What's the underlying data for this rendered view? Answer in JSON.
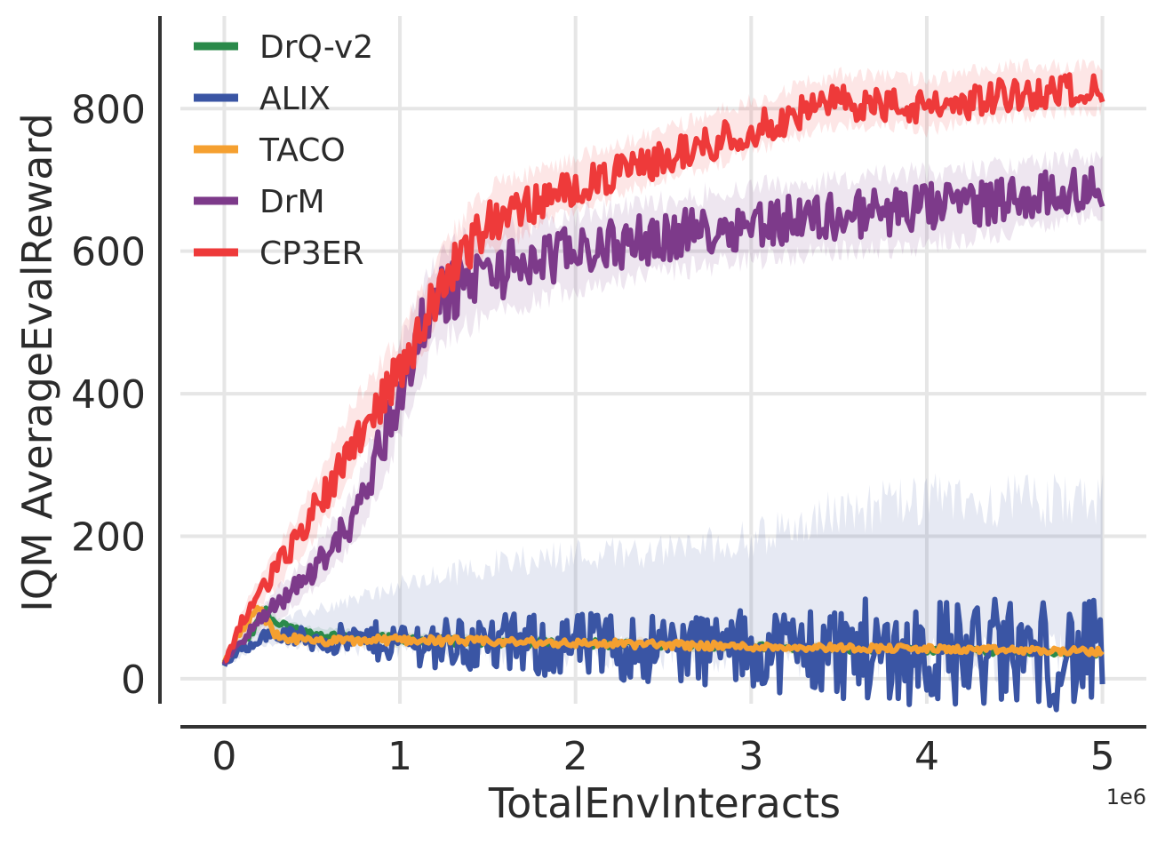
{
  "chart_data": {
    "type": "line",
    "xlabel": "TotalEnvInteracts",
    "ylabel": "IQM AverageEvalReward",
    "x_scale_label": "1e6",
    "xlim": [
      -0.25,
      5.25
    ],
    "ylim": [
      -35,
      930
    ],
    "x_ticks": [
      0,
      1,
      2,
      3,
      4,
      5
    ],
    "y_ticks": [
      0,
      200,
      400,
      600,
      800
    ],
    "x_unit_multiplier": 1000000,
    "grid": true,
    "legend_position": "top-left",
    "series": [
      {
        "name": "DrQ-v2",
        "color": "#2a8a4a",
        "x": [
          0,
          0.1,
          0.2,
          0.25,
          0.3,
          0.5,
          1.0,
          1.5,
          2.0,
          2.5,
          3.0,
          3.5,
          4.0,
          4.5,
          5.0
        ],
        "y": [
          22,
          45,
          80,
          95,
          75,
          62,
          55,
          52,
          50,
          47,
          45,
          42,
          40,
          38,
          36
        ],
        "lower": [
          18,
          38,
          68,
          82,
          64,
          53,
          46,
          44,
          42,
          40,
          38,
          36,
          34,
          32,
          30
        ],
        "upper": [
          26,
          52,
          92,
          108,
          86,
          71,
          64,
          60,
          58,
          55,
          52,
          49,
          46,
          44,
          42
        ]
      },
      {
        "name": "ALIX",
        "color": "#3a55a4",
        "x": [
          0,
          0.1,
          0.2,
          0.3,
          0.5,
          1.0,
          1.5,
          2.0,
          2.5,
          3.0,
          3.5,
          4.0,
          4.5,
          5.0
        ],
        "y": [
          20,
          40,
          58,
          62,
          55,
          52,
          48,
          46,
          44,
          42,
          40,
          38,
          35,
          32
        ],
        "lower": [
          16,
          32,
          48,
          50,
          44,
          42,
          40,
          38,
          36,
          34,
          32,
          30,
          28,
          26
        ],
        "upper": [
          26,
          55,
          70,
          80,
          95,
          130,
          160,
          175,
          180,
          195,
          235,
          250,
          250,
          250
        ]
      },
      {
        "name": "TACO",
        "color": "#f5a030",
        "x": [
          0,
          0.1,
          0.2,
          0.3,
          0.5,
          1.0,
          1.5,
          2.0,
          2.5,
          3.0,
          3.5,
          4.0,
          4.5,
          5.0
        ],
        "y": [
          22,
          70,
          95,
          60,
          52,
          55,
          52,
          50,
          48,
          45,
          44,
          42,
          40,
          38
        ],
        "lower": [
          18,
          58,
          80,
          50,
          44,
          46,
          44,
          42,
          40,
          38,
          36,
          34,
          32,
          30
        ],
        "upper": [
          26,
          82,
          110,
          70,
          60,
          64,
          60,
          58,
          56,
          52,
          50,
          48,
          46,
          44
        ]
      },
      {
        "name": "DrM",
        "color": "#7d3a8a",
        "x": [
          0,
          0.1,
          0.2,
          0.3,
          0.5,
          0.75,
          1.0,
          1.1,
          1.25,
          1.5,
          2.0,
          2.5,
          3.0,
          3.5,
          4.0,
          4.5,
          5.0
        ],
        "y": [
          22,
          55,
          80,
          105,
          150,
          230,
          400,
          480,
          540,
          570,
          600,
          620,
          640,
          650,
          660,
          675,
          690
        ],
        "lower": [
          18,
          45,
          65,
          85,
          125,
          190,
          340,
          420,
          480,
          510,
          550,
          570,
          590,
          600,
          610,
          630,
          650
        ],
        "upper": [
          26,
          65,
          95,
          125,
          175,
          270,
          460,
          540,
          600,
          630,
          650,
          670,
          690,
          700,
          710,
          720,
          735
        ]
      },
      {
        "name": "CP3ER",
        "color": "#ee3a3a",
        "x": [
          0,
          0.1,
          0.2,
          0.3,
          0.5,
          0.75,
          1.0,
          1.25,
          1.5,
          2.0,
          2.5,
          3.0,
          3.5,
          4.0,
          4.5,
          5.0
        ],
        "y": [
          22,
          80,
          120,
          155,
          230,
          340,
          430,
          560,
          640,
          690,
          730,
          770,
          810,
          800,
          820,
          830
        ],
        "lower": [
          18,
          65,
          100,
          130,
          195,
          300,
          390,
          520,
          600,
          660,
          700,
          740,
          780,
          770,
          790,
          800
        ],
        "upper": [
          26,
          95,
          140,
          180,
          265,
          390,
          480,
          610,
          690,
          730,
          770,
          810,
          850,
          840,
          860,
          860
        ]
      }
    ]
  }
}
